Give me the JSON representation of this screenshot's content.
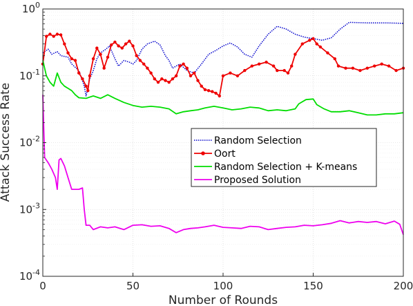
{
  "chart_data": {
    "type": "line",
    "title": "",
    "xlabel": "Number of Rounds",
    "ylabel": "Attack Success Rate",
    "xlim": [
      0,
      200
    ],
    "ylim": [
      0.0001,
      1
    ],
    "yscale": "log",
    "grid": true,
    "legend_position": "center-right",
    "x_ticks": [
      {
        "value": 0,
        "label": "0"
      },
      {
        "value": 50,
        "label": "50"
      },
      {
        "value": 100,
        "label": "100"
      },
      {
        "value": 150,
        "label": "150"
      },
      {
        "value": 200,
        "label": "200"
      }
    ],
    "y_ticks": [
      {
        "value": 1,
        "base": "10",
        "exp": "0"
      },
      {
        "value": 0.1,
        "base": "10",
        "exp": "-1"
      },
      {
        "value": 0.01,
        "base": "10",
        "exp": "-2"
      },
      {
        "value": 0.001,
        "base": "10",
        "exp": "-3"
      },
      {
        "value": 0.0001,
        "base": "10",
        "exp": "-4"
      }
    ],
    "series": [
      {
        "name": "Random Selection",
        "color": "#0000cc",
        "style": "dotted",
        "marker": "none",
        "points": [
          [
            0,
            0.22
          ],
          [
            3,
            0.25
          ],
          [
            5,
            0.21
          ],
          [
            8,
            0.23
          ],
          [
            10,
            0.2
          ],
          [
            14,
            0.19
          ],
          [
            16,
            0.15
          ],
          [
            20,
            0.12
          ],
          [
            23,
            0.07
          ],
          [
            24,
            0.05
          ],
          [
            26,
            0.09
          ],
          [
            28,
            0.12
          ],
          [
            30,
            0.18
          ],
          [
            32,
            0.22
          ],
          [
            35,
            0.25
          ],
          [
            37,
            0.28
          ],
          [
            40,
            0.18
          ],
          [
            42,
            0.14
          ],
          [
            45,
            0.17
          ],
          [
            48,
            0.16
          ],
          [
            50,
            0.15
          ],
          [
            52,
            0.17
          ],
          [
            55,
            0.25
          ],
          [
            58,
            0.3
          ],
          [
            62,
            0.33
          ],
          [
            65,
            0.29
          ],
          [
            68,
            0.2
          ],
          [
            70,
            0.17
          ],
          [
            72,
            0.13
          ],
          [
            74,
            0.14
          ],
          [
            76,
            0.15
          ],
          [
            80,
            0.12
          ],
          [
            84,
            0.11
          ],
          [
            88,
            0.15
          ],
          [
            92,
            0.21
          ],
          [
            96,
            0.24
          ],
          [
            100,
            0.28
          ],
          [
            104,
            0.31
          ],
          [
            108,
            0.27
          ],
          [
            112,
            0.21
          ],
          [
            116,
            0.19
          ],
          [
            120,
            0.28
          ],
          [
            125,
            0.42
          ],
          [
            130,
            0.55
          ],
          [
            135,
            0.5
          ],
          [
            140,
            0.42
          ],
          [
            145,
            0.38
          ],
          [
            150,
            0.36
          ],
          [
            155,
            0.34
          ],
          [
            160,
            0.37
          ],
          [
            165,
            0.5
          ],
          [
            170,
            0.63
          ],
          [
            180,
            0.62
          ],
          [
            190,
            0.62
          ],
          [
            200,
            0.61
          ]
        ]
      },
      {
        "name": "Oort",
        "color": "#ee0000",
        "style": "solid",
        "marker": "dot",
        "points": [
          [
            0,
            0.15
          ],
          [
            2,
            0.39
          ],
          [
            4,
            0.42
          ],
          [
            6,
            0.39
          ],
          [
            8,
            0.42
          ],
          [
            10,
            0.41
          ],
          [
            12,
            0.3
          ],
          [
            14,
            0.22
          ],
          [
            16,
            0.18
          ],
          [
            18,
            0.17
          ],
          [
            20,
            0.11
          ],
          [
            22,
            0.09
          ],
          [
            24,
            0.07
          ],
          [
            25,
            0.06
          ],
          [
            26,
            0.1
          ],
          [
            28,
            0.18
          ],
          [
            30,
            0.26
          ],
          [
            32,
            0.21
          ],
          [
            34,
            0.13
          ],
          [
            36,
            0.19
          ],
          [
            38,
            0.29
          ],
          [
            40,
            0.32
          ],
          [
            42,
            0.28
          ],
          [
            44,
            0.26
          ],
          [
            46,
            0.3
          ],
          [
            48,
            0.33
          ],
          [
            50,
            0.28
          ],
          [
            52,
            0.2
          ],
          [
            54,
            0.17
          ],
          [
            56,
            0.15
          ],
          [
            58,
            0.13
          ],
          [
            60,
            0.11
          ],
          [
            62,
            0.09
          ],
          [
            64,
            0.08
          ],
          [
            66,
            0.09
          ],
          [
            68,
            0.085
          ],
          [
            70,
            0.08
          ],
          [
            72,
            0.09
          ],
          [
            74,
            0.1
          ],
          [
            76,
            0.14
          ],
          [
            78,
            0.15
          ],
          [
            80,
            0.13
          ],
          [
            82,
            0.1
          ],
          [
            84,
            0.11
          ],
          [
            86,
            0.085
          ],
          [
            88,
            0.07
          ],
          [
            90,
            0.062
          ],
          [
            92,
            0.06
          ],
          [
            94,
            0.058
          ],
          [
            96,
            0.055
          ],
          [
            98,
            0.05
          ],
          [
            100,
            0.1
          ],
          [
            104,
            0.11
          ],
          [
            108,
            0.1
          ],
          [
            112,
            0.12
          ],
          [
            116,
            0.14
          ],
          [
            120,
            0.15
          ],
          [
            124,
            0.16
          ],
          [
            128,
            0.14
          ],
          [
            130,
            0.12
          ],
          [
            134,
            0.12
          ],
          [
            136,
            0.11
          ],
          [
            138,
            0.14
          ],
          [
            140,
            0.21
          ],
          [
            144,
            0.3
          ],
          [
            148,
            0.34
          ],
          [
            150,
            0.36
          ],
          [
            152,
            0.3
          ],
          [
            154,
            0.27
          ],
          [
            158,
            0.22
          ],
          [
            162,
            0.18
          ],
          [
            164,
            0.14
          ],
          [
            168,
            0.13
          ],
          [
            172,
            0.13
          ],
          [
            176,
            0.12
          ],
          [
            180,
            0.13
          ],
          [
            184,
            0.14
          ],
          [
            188,
            0.15
          ],
          [
            192,
            0.14
          ],
          [
            196,
            0.12
          ],
          [
            200,
            0.13
          ]
        ]
      },
      {
        "name": "Random Selection + K-means",
        "color": "#00dd00",
        "style": "solid",
        "marker": "none",
        "points": [
          [
            0,
            0.17
          ],
          [
            2,
            0.1
          ],
          [
            4,
            0.08
          ],
          [
            6,
            0.07
          ],
          [
            8,
            0.11
          ],
          [
            10,
            0.08
          ],
          [
            12,
            0.07
          ],
          [
            14,
            0.065
          ],
          [
            16,
            0.06
          ],
          [
            18,
            0.052
          ],
          [
            20,
            0.047
          ],
          [
            24,
            0.046
          ],
          [
            28,
            0.05
          ],
          [
            32,
            0.046
          ],
          [
            36,
            0.052
          ],
          [
            40,
            0.046
          ],
          [
            45,
            0.04
          ],
          [
            50,
            0.036
          ],
          [
            55,
            0.034
          ],
          [
            60,
            0.035
          ],
          [
            65,
            0.034
          ],
          [
            70,
            0.032
          ],
          [
            74,
            0.027
          ],
          [
            78,
            0.029
          ],
          [
            82,
            0.03
          ],
          [
            86,
            0.031
          ],
          [
            90,
            0.033
          ],
          [
            95,
            0.035
          ],
          [
            100,
            0.033
          ],
          [
            105,
            0.031
          ],
          [
            110,
            0.032
          ],
          [
            115,
            0.034
          ],
          [
            120,
            0.033
          ],
          [
            125,
            0.03
          ],
          [
            130,
            0.031
          ],
          [
            135,
            0.03
          ],
          [
            140,
            0.032
          ],
          [
            142,
            0.038
          ],
          [
            146,
            0.044
          ],
          [
            150,
            0.045
          ],
          [
            152,
            0.037
          ],
          [
            156,
            0.032
          ],
          [
            160,
            0.029
          ],
          [
            165,
            0.029
          ],
          [
            170,
            0.03
          ],
          [
            175,
            0.028
          ],
          [
            180,
            0.026
          ],
          [
            185,
            0.026
          ],
          [
            190,
            0.027
          ],
          [
            195,
            0.027
          ],
          [
            200,
            0.028
          ]
        ]
      },
      {
        "name": "Proposed Solution",
        "color": "#ee00ee",
        "style": "solid",
        "marker": "none",
        "points": [
          [
            0,
            0.052
          ],
          [
            1,
            0.006
          ],
          [
            3,
            0.005
          ],
          [
            5,
            0.004
          ],
          [
            7,
            0.003
          ],
          [
            8,
            0.002
          ],
          [
            9,
            0.0055
          ],
          [
            10,
            0.0058
          ],
          [
            12,
            0.0045
          ],
          [
            14,
            0.003
          ],
          [
            16,
            0.002
          ],
          [
            18,
            0.002
          ],
          [
            20,
            0.002
          ],
          [
            22,
            0.0021
          ],
          [
            23,
            0.001
          ],
          [
            24,
            0.00058
          ],
          [
            26,
            0.00058
          ],
          [
            28,
            0.0005
          ],
          [
            32,
            0.00055
          ],
          [
            36,
            0.00053
          ],
          [
            40,
            0.00055
          ],
          [
            45,
            0.0005
          ],
          [
            50,
            0.00058
          ],
          [
            55,
            0.00059
          ],
          [
            60,
            0.00056
          ],
          [
            65,
            0.00057
          ],
          [
            70,
            0.00052
          ],
          [
            74,
            0.00045
          ],
          [
            78,
            0.0005
          ],
          [
            82,
            0.00052
          ],
          [
            86,
            0.00053
          ],
          [
            90,
            0.00055
          ],
          [
            95,
            0.00058
          ],
          [
            100,
            0.00054
          ],
          [
            105,
            0.00053
          ],
          [
            110,
            0.00052
          ],
          [
            115,
            0.00056
          ],
          [
            120,
            0.00055
          ],
          [
            125,
            0.0005
          ],
          [
            130,
            0.00052
          ],
          [
            135,
            0.00054
          ],
          [
            140,
            0.00055
          ],
          [
            145,
            0.00058
          ],
          [
            150,
            0.00057
          ],
          [
            155,
            0.00059
          ],
          [
            160,
            0.00062
          ],
          [
            165,
            0.00068
          ],
          [
            170,
            0.00063
          ],
          [
            175,
            0.00066
          ],
          [
            180,
            0.00064
          ],
          [
            185,
            0.00066
          ],
          [
            190,
            0.00061
          ],
          [
            195,
            0.00067
          ],
          [
            198,
            0.0006
          ],
          [
            200,
            0.00042
          ]
        ]
      }
    ]
  }
}
